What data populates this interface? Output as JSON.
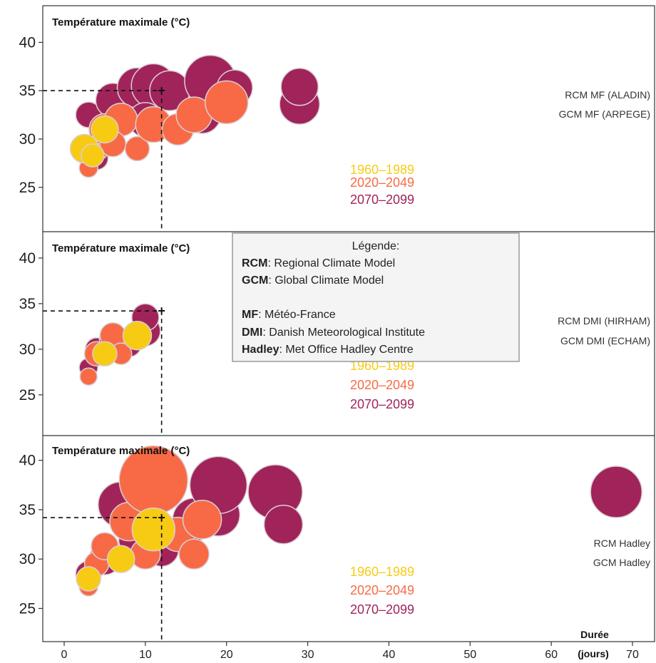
{
  "colors": {
    "p1960": "#F7CB14",
    "p2020": "#F86A45",
    "p2070": "#A0245A",
    "bubble_stroke": "#D9D0D5"
  },
  "legend": {
    "title": "Légende:",
    "entries": [
      {
        "abbr": "RCM",
        "text": ": Regional Climate Model"
      },
      {
        "abbr": "GCM",
        "text": ": Global Climate Model"
      },
      {
        "abbr": "MF",
        "text": ": Météo-France"
      },
      {
        "abbr": "DMI",
        "text": ": Danish Meteorological Institute"
      },
      {
        "abbr": "Hadley",
        "text": ": Met Office Hadley Centre"
      }
    ]
  },
  "x_axis": {
    "ticks": [
      "0",
      "10",
      "20",
      "30",
      "40",
      "50",
      "60",
      "70"
    ],
    "label_line1": "Durée",
    "label_line2": "(jours)"
  },
  "chart_data": [
    {
      "type": "scatter",
      "title": "Température maximale (°C)",
      "model_line1": "RCM MF (ALADIN)",
      "model_line2": "GCM MF (ARPEGE)",
      "xlim": [
        0,
        70
      ],
      "ylim": [
        21,
        43.5
      ],
      "yticks": [
        "25",
        "30",
        "35",
        "40"
      ],
      "reference": {
        "x": 12,
        "y": 35
      },
      "periods": [
        "1960–1989",
        "2020–2049",
        "2070–2099"
      ],
      "series": [
        {
          "key": "p2070",
          "points": [
            {
              "x": 3,
              "y": 32.5,
              "size": 18
            },
            {
              "x": 6,
              "y": 34,
              "size": 24
            },
            {
              "x": 9,
              "y": 35.3,
              "size": 28
            },
            {
              "x": 11,
              "y": 35.5,
              "size": 31
            },
            {
              "x": 13,
              "y": 35,
              "size": 28
            },
            {
              "x": 17,
              "y": 32.5,
              "size": 26
            },
            {
              "x": 18,
              "y": 36,
              "size": 36
            },
            {
              "x": 21,
              "y": 35.3,
              "size": 25
            },
            {
              "x": 29,
              "y": 33.6,
              "size": 28
            },
            {
              "x": 29,
              "y": 35.4,
              "size": 26
            },
            {
              "x": 4,
              "y": 28,
              "size": 16
            },
            {
              "x": 10,
              "y": 32,
              "size": 24
            }
          ]
        },
        {
          "key": "p2020",
          "points": [
            {
              "x": 3,
              "y": 27,
              "size": 13
            },
            {
              "x": 4,
              "y": 29,
              "size": 17
            },
            {
              "x": 5,
              "y": 31,
              "size": 22
            },
            {
              "x": 7,
              "y": 32,
              "size": 23
            },
            {
              "x": 9,
              "y": 29,
              "size": 17
            },
            {
              "x": 11,
              "y": 31.5,
              "size": 25
            },
            {
              "x": 14,
              "y": 31,
              "size": 22
            },
            {
              "x": 16,
              "y": 32.5,
              "size": 25
            },
            {
              "x": 20,
              "y": 33.8,
              "size": 30
            },
            {
              "x": 6,
              "y": 29.5,
              "size": 18
            }
          ]
        },
        {
          "key": "p1960",
          "points": [
            {
              "x": 2.5,
              "y": 29,
              "size": 20
            },
            {
              "x": 3.5,
              "y": 28.3,
              "size": 16
            },
            {
              "x": 5,
              "y": 31,
              "size": 19
            }
          ]
        }
      ]
    },
    {
      "type": "scatter",
      "title": "Température maximale (°C)",
      "model_line1": "RCM DMI (HIRHAM)",
      "model_line2": "GCM DMI (ECHAM)",
      "xlim": [
        0,
        70
      ],
      "ylim": [
        21,
        42.5
      ],
      "yticks": [
        "25",
        "30",
        "35",
        "40"
      ],
      "reference": {
        "x": 12,
        "y": 34.2
      },
      "periods": [
        "1960–1989",
        "2020–2049",
        "2070–2099"
      ],
      "series": [
        {
          "key": "p2070",
          "points": [
            {
              "x": 3,
              "y": 28,
              "size": 13
            },
            {
              "x": 4,
              "y": 30,
              "size": 16
            },
            {
              "x": 6,
              "y": 31,
              "size": 19
            },
            {
              "x": 8,
              "y": 30.5,
              "size": 17
            },
            {
              "x": 10,
              "y": 32,
              "size": 21
            },
            {
              "x": 10,
              "y": 33.5,
              "size": 19
            }
          ]
        },
        {
          "key": "p2020",
          "points": [
            {
              "x": 3,
              "y": 27,
              "size": 12
            },
            {
              "x": 4,
              "y": 29.5,
              "size": 17
            },
            {
              "x": 6,
              "y": 31.5,
              "size": 18
            },
            {
              "x": 7,
              "y": 29.5,
              "size": 15
            }
          ]
        },
        {
          "key": "p1960",
          "points": [
            {
              "x": 5,
              "y": 29.5,
              "size": 17
            },
            {
              "x": 9,
              "y": 31.5,
              "size": 20
            }
          ]
        }
      ]
    },
    {
      "type": "scatter",
      "title": "Température maximale (°C)",
      "model_line1": "RCM  Hadley",
      "model_line2": "GCM Hadley",
      "xlim": [
        0,
        70
      ],
      "ylim": [
        22,
        42
      ],
      "yticks": [
        "25",
        "30",
        "35",
        "40"
      ],
      "reference": {
        "x": 12,
        "y": 34.2
      },
      "periods": [
        "1960–1989",
        "2020–2049",
        "2070–2099"
      ],
      "series": [
        {
          "key": "p2070",
          "points": [
            {
              "x": 3,
              "y": 28.5,
              "size": 18
            },
            {
              "x": 5,
              "y": 30,
              "size": 22
            },
            {
              "x": 7,
              "y": 35.5,
              "size": 32
            },
            {
              "x": 9,
              "y": 32,
              "size": 26
            },
            {
              "x": 12,
              "y": 31,
              "size": 24
            },
            {
              "x": 16,
              "y": 34,
              "size": 30
            },
            {
              "x": 19,
              "y": 34.5,
              "size": 30
            },
            {
              "x": 19,
              "y": 37.5,
              "size": 40
            },
            {
              "x": 26,
              "y": 36.8,
              "size": 38
            },
            {
              "x": 27,
              "y": 33.5,
              "size": 27
            },
            {
              "x": 68,
              "y": 36.8,
              "size": 36
            }
          ]
        },
        {
          "key": "p2020",
          "points": [
            {
              "x": 3,
              "y": 27.2,
              "size": 13
            },
            {
              "x": 4,
              "y": 29.5,
              "size": 17
            },
            {
              "x": 5,
              "y": 31.3,
              "size": 19
            },
            {
              "x": 8,
              "y": 33.8,
              "size": 27
            },
            {
              "x": 10,
              "y": 30.5,
              "size": 21
            },
            {
              "x": 11,
              "y": 38,
              "size": 48
            },
            {
              "x": 14,
              "y": 32.5,
              "size": 24
            },
            {
              "x": 17,
              "y": 34,
              "size": 27
            },
            {
              "x": 16,
              "y": 30.5,
              "size": 21
            }
          ]
        },
        {
          "key": "p1960",
          "points": [
            {
              "x": 3,
              "y": 28,
              "size": 17
            },
            {
              "x": 7,
              "y": 30,
              "size": 19
            },
            {
              "x": 11,
              "y": 33,
              "size": 30
            }
          ]
        }
      ]
    }
  ]
}
